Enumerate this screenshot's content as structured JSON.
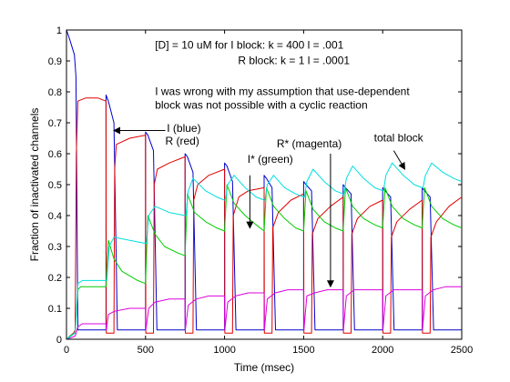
{
  "chart_data": {
    "type": "line",
    "title": "",
    "xlabel": "Time (msec)",
    "ylabel": "Fraction of inactivated channels",
    "xlim": [
      0,
      2500
    ],
    "ylim": [
      0,
      1
    ],
    "xticks": [
      "0",
      "500",
      "1000",
      "1500",
      "2000",
      "2500"
    ],
    "yticks": [
      "0",
      "0.1",
      "0.2",
      "0.3",
      "0.4",
      "0.5",
      "0.6",
      "0.7",
      "0.8",
      "0.9",
      "1"
    ],
    "grid": false,
    "legend": "none",
    "pulse_times": [
      0,
      250,
      500,
      750,
      1000,
      1250,
      1500,
      1750,
      2000,
      2250
    ],
    "series": [
      {
        "name": "I (blue)",
        "color": "#0000cc",
        "points": [
          [
            0,
            1
          ],
          [
            20,
            0.97
          ],
          [
            50,
            0.92
          ],
          [
            60,
            0.85
          ],
          [
            72,
            0.03
          ],
          [
            250,
            0.03
          ],
          [
            250,
            0.79
          ],
          [
            265,
            0.77
          ],
          [
            300,
            0.7
          ],
          [
            322,
            0.03
          ],
          [
            500,
            0.03
          ],
          [
            500,
            0.67
          ],
          [
            515,
            0.66
          ],
          [
            550,
            0.61
          ],
          [
            572,
            0.03
          ],
          [
            750,
            0.03
          ],
          [
            750,
            0.6
          ],
          [
            765,
            0.59
          ],
          [
            800,
            0.54
          ],
          [
            822,
            0.03
          ],
          [
            1000,
            0.03
          ],
          [
            1000,
            0.57
          ],
          [
            1015,
            0.56
          ],
          [
            1050,
            0.51
          ],
          [
            1072,
            0.03
          ],
          [
            1250,
            0.03
          ],
          [
            1250,
            0.53
          ],
          [
            1265,
            0.52
          ],
          [
            1300,
            0.49
          ],
          [
            1322,
            0.03
          ],
          [
            1500,
            0.03
          ],
          [
            1500,
            0.51
          ],
          [
            1515,
            0.5
          ],
          [
            1550,
            0.48
          ],
          [
            1572,
            0.03
          ],
          [
            1750,
            0.03
          ],
          [
            1750,
            0.5
          ],
          [
            1765,
            0.49
          ],
          [
            1800,
            0.47
          ],
          [
            1822,
            0.03
          ],
          [
            2000,
            0.03
          ],
          [
            2000,
            0.49
          ],
          [
            2015,
            0.48
          ],
          [
            2050,
            0.46
          ],
          [
            2072,
            0.03
          ],
          [
            2250,
            0.03
          ],
          [
            2250,
            0.49
          ],
          [
            2265,
            0.48
          ],
          [
            2300,
            0.46
          ],
          [
            2322,
            0.03
          ],
          [
            2500,
            0.03
          ]
        ]
      },
      {
        "name": "R (red)",
        "color": "#e00000",
        "points": [
          [
            0,
            0
          ],
          [
            20,
            0.01
          ],
          [
            45,
            0.02
          ],
          [
            55,
            0.03
          ],
          [
            62,
            0.6
          ],
          [
            72,
            0.77
          ],
          [
            120,
            0.78
          ],
          [
            200,
            0.78
          ],
          [
            250,
            0.77
          ],
          [
            252,
            0.02
          ],
          [
            300,
            0.02
          ],
          [
            305,
            0.55
          ],
          [
            315,
            0.63
          ],
          [
            400,
            0.65
          ],
          [
            500,
            0.66
          ],
          [
            502,
            0.02
          ],
          [
            550,
            0.02
          ],
          [
            555,
            0.5
          ],
          [
            575,
            0.55
          ],
          [
            650,
            0.57
          ],
          [
            750,
            0.59
          ],
          [
            752,
            0.02
          ],
          [
            800,
            0.02
          ],
          [
            805,
            0.45
          ],
          [
            830,
            0.5
          ],
          [
            900,
            0.53
          ],
          [
            1000,
            0.55
          ],
          [
            1002,
            0.02
          ],
          [
            1050,
            0.02
          ],
          [
            1055,
            0.4
          ],
          [
            1090,
            0.46
          ],
          [
            1150,
            0.48
          ],
          [
            1250,
            0.49
          ],
          [
            1252,
            0.02
          ],
          [
            1300,
            0.02
          ],
          [
            1305,
            0.36
          ],
          [
            1340,
            0.41
          ],
          [
            1420,
            0.45
          ],
          [
            1500,
            0.47
          ],
          [
            1502,
            0.02
          ],
          [
            1550,
            0.02
          ],
          [
            1555,
            0.34
          ],
          [
            1590,
            0.39
          ],
          [
            1670,
            0.43
          ],
          [
            1750,
            0.46
          ],
          [
            1752,
            0.02
          ],
          [
            1800,
            0.02
          ],
          [
            1805,
            0.34
          ],
          [
            1840,
            0.39
          ],
          [
            1920,
            0.43
          ],
          [
            2000,
            0.45
          ],
          [
            2002,
            0.02
          ],
          [
            2050,
            0.02
          ],
          [
            2055,
            0.33
          ],
          [
            2090,
            0.38
          ],
          [
            2170,
            0.42
          ],
          [
            2250,
            0.45
          ],
          [
            2252,
            0.02
          ],
          [
            2300,
            0.02
          ],
          [
            2305,
            0.33
          ],
          [
            2340,
            0.38
          ],
          [
            2420,
            0.43
          ],
          [
            2500,
            0.46
          ]
        ]
      },
      {
        "name": "I* (green)",
        "color": "#00cc00",
        "points": [
          [
            0,
            0
          ],
          [
            20,
            0.01
          ],
          [
            55,
            0.02
          ],
          [
            72,
            0.16
          ],
          [
            90,
            0.17
          ],
          [
            250,
            0.17
          ],
          [
            265,
            0.32
          ],
          [
            300,
            0.26
          ],
          [
            350,
            0.22
          ],
          [
            450,
            0.19
          ],
          [
            500,
            0.18
          ],
          [
            515,
            0.4
          ],
          [
            560,
            0.34
          ],
          [
            620,
            0.3
          ],
          [
            700,
            0.28
          ],
          [
            750,
            0.27
          ],
          [
            765,
            0.47
          ],
          [
            810,
            0.41
          ],
          [
            880,
            0.38
          ],
          [
            950,
            0.36
          ],
          [
            1000,
            0.35
          ],
          [
            1015,
            0.5
          ],
          [
            1060,
            0.44
          ],
          [
            1130,
            0.4
          ],
          [
            1200,
            0.37
          ],
          [
            1250,
            0.35
          ],
          [
            1265,
            0.49
          ],
          [
            1310,
            0.43
          ],
          [
            1380,
            0.39
          ],
          [
            1450,
            0.36
          ],
          [
            1500,
            0.35
          ],
          [
            1515,
            0.48
          ],
          [
            1560,
            0.42
          ],
          [
            1630,
            0.38
          ],
          [
            1700,
            0.36
          ],
          [
            1750,
            0.35
          ],
          [
            1765,
            0.49
          ],
          [
            1810,
            0.43
          ],
          [
            1880,
            0.39
          ],
          [
            1950,
            0.37
          ],
          [
            2000,
            0.36
          ],
          [
            2015,
            0.49
          ],
          [
            2060,
            0.43
          ],
          [
            2130,
            0.39
          ],
          [
            2200,
            0.37
          ],
          [
            2250,
            0.36
          ],
          [
            2265,
            0.49
          ],
          [
            2310,
            0.43
          ],
          [
            2380,
            0.39
          ],
          [
            2450,
            0.37
          ],
          [
            2500,
            0.36
          ]
        ]
      },
      {
        "name": "R* (magenta)",
        "color": "#dd00dd",
        "points": [
          [
            0,
            0
          ],
          [
            55,
            0.01
          ],
          [
            72,
            0.04
          ],
          [
            100,
            0.05
          ],
          [
            250,
            0.05
          ],
          [
            252,
            0.03
          ],
          [
            265,
            0.08
          ],
          [
            300,
            0.09
          ],
          [
            400,
            0.1
          ],
          [
            500,
            0.1
          ],
          [
            502,
            0.03
          ],
          [
            520,
            0.1
          ],
          [
            560,
            0.12
          ],
          [
            650,
            0.13
          ],
          [
            750,
            0.13
          ],
          [
            752,
            0.03
          ],
          [
            770,
            0.11
          ],
          [
            820,
            0.13
          ],
          [
            900,
            0.14
          ],
          [
            1000,
            0.14
          ],
          [
            1002,
            0.03
          ],
          [
            1020,
            0.12
          ],
          [
            1070,
            0.14
          ],
          [
            1150,
            0.15
          ],
          [
            1250,
            0.15
          ],
          [
            1252,
            0.03
          ],
          [
            1270,
            0.13
          ],
          [
            1320,
            0.15
          ],
          [
            1400,
            0.16
          ],
          [
            1500,
            0.16
          ],
          [
            1502,
            0.03
          ],
          [
            1520,
            0.14
          ],
          [
            1570,
            0.15
          ],
          [
            1650,
            0.16
          ],
          [
            1750,
            0.16
          ],
          [
            1752,
            0.03
          ],
          [
            1770,
            0.14
          ],
          [
            1820,
            0.16
          ],
          [
            1900,
            0.16
          ],
          [
            2000,
            0.16
          ],
          [
            2002,
            0.03
          ],
          [
            2020,
            0.14
          ],
          [
            2070,
            0.16
          ],
          [
            2150,
            0.16
          ],
          [
            2250,
            0.16
          ],
          [
            2252,
            0.03
          ],
          [
            2270,
            0.14
          ],
          [
            2320,
            0.16
          ],
          [
            2400,
            0.17
          ],
          [
            2500,
            0.17
          ]
        ]
      },
      {
        "name": "total block",
        "color": "#00dddd",
        "points": [
          [
            0,
            0
          ],
          [
            55,
            0.02
          ],
          [
            72,
            0.18
          ],
          [
            100,
            0.19
          ],
          [
            250,
            0.19
          ],
          [
            255,
            0.19
          ],
          [
            270,
            0.3
          ],
          [
            300,
            0.33
          ],
          [
            400,
            0.32
          ],
          [
            500,
            0.31
          ],
          [
            505,
            0.31
          ],
          [
            520,
            0.4
          ],
          [
            560,
            0.43
          ],
          [
            650,
            0.41
          ],
          [
            750,
            0.4
          ],
          [
            755,
            0.4
          ],
          [
            770,
            0.48
          ],
          [
            800,
            0.52
          ],
          [
            880,
            0.48
          ],
          [
            950,
            0.46
          ],
          [
            1000,
            0.45
          ],
          [
            1005,
            0.45
          ],
          [
            1020,
            0.5
          ],
          [
            1060,
            0.53
          ],
          [
            1130,
            0.49
          ],
          [
            1200,
            0.46
          ],
          [
            1250,
            0.45
          ],
          [
            1255,
            0.45
          ],
          [
            1270,
            0.5
          ],
          [
            1310,
            0.53
          ],
          [
            1380,
            0.49
          ],
          [
            1450,
            0.47
          ],
          [
            1500,
            0.46
          ],
          [
            1505,
            0.46
          ],
          [
            1520,
            0.51
          ],
          [
            1560,
            0.55
          ],
          [
            1630,
            0.51
          ],
          [
            1700,
            0.48
          ],
          [
            1750,
            0.47
          ],
          [
            1755,
            0.47
          ],
          [
            1770,
            0.52
          ],
          [
            1810,
            0.56
          ],
          [
            1880,
            0.52
          ],
          [
            1950,
            0.49
          ],
          [
            2000,
            0.48
          ],
          [
            2005,
            0.48
          ],
          [
            2020,
            0.53
          ],
          [
            2060,
            0.57
          ],
          [
            2130,
            0.53
          ],
          [
            2200,
            0.5
          ],
          [
            2250,
            0.49
          ],
          [
            2255,
            0.49
          ],
          [
            2270,
            0.53
          ],
          [
            2310,
            0.57
          ],
          [
            2380,
            0.54
          ],
          [
            2450,
            0.52
          ],
          [
            2500,
            0.51
          ]
        ]
      }
    ],
    "annotations": [
      {
        "id": "params1",
        "text": "[D] = 10 uM  for I block: k = 400   l = .001",
        "x": 560,
        "y": 0.94
      },
      {
        "id": "params2",
        "text": "R block: k = 1      l = .0001",
        "x": 1085,
        "y": 0.89
      },
      {
        "id": "note1",
        "text": "I was wrong with my assumption that use-dependent",
        "x": 560,
        "y": 0.79
      },
      {
        "id": "note2",
        "text": "block was not possible with a cyclic reaction",
        "x": 560,
        "y": 0.745
      },
      {
        "id": "label-I",
        "text": "I (blue)",
        "x": 635,
        "y": 0.67
      },
      {
        "id": "label-R",
        "text": "R  (red)",
        "x": 625,
        "y": 0.63
      },
      {
        "id": "label-Istar",
        "text": "I* (green)",
        "x": 1145,
        "y": 0.57
      },
      {
        "id": "label-Rstar",
        "text": "R* (magenta)",
        "x": 1330,
        "y": 0.62
      },
      {
        "id": "label-total",
        "text": "total block",
        "x": 1945,
        "y": 0.64
      }
    ],
    "arrows": [
      {
        "id": "arrow-I",
        "from": [
          625,
          0.675
        ],
        "to": [
          300,
          0.675
        ]
      },
      {
        "id": "arrow-Istar",
        "from": [
          1160,
          0.53
        ],
        "to": [
          1160,
          0.36
        ]
      },
      {
        "id": "arrow-Rstar",
        "from": [
          1670,
          0.6
        ],
        "to": [
          1670,
          0.17
        ]
      },
      {
        "id": "arrow-total",
        "from": [
          2070,
          0.61
        ],
        "to": [
          2140,
          0.55
        ]
      }
    ]
  }
}
